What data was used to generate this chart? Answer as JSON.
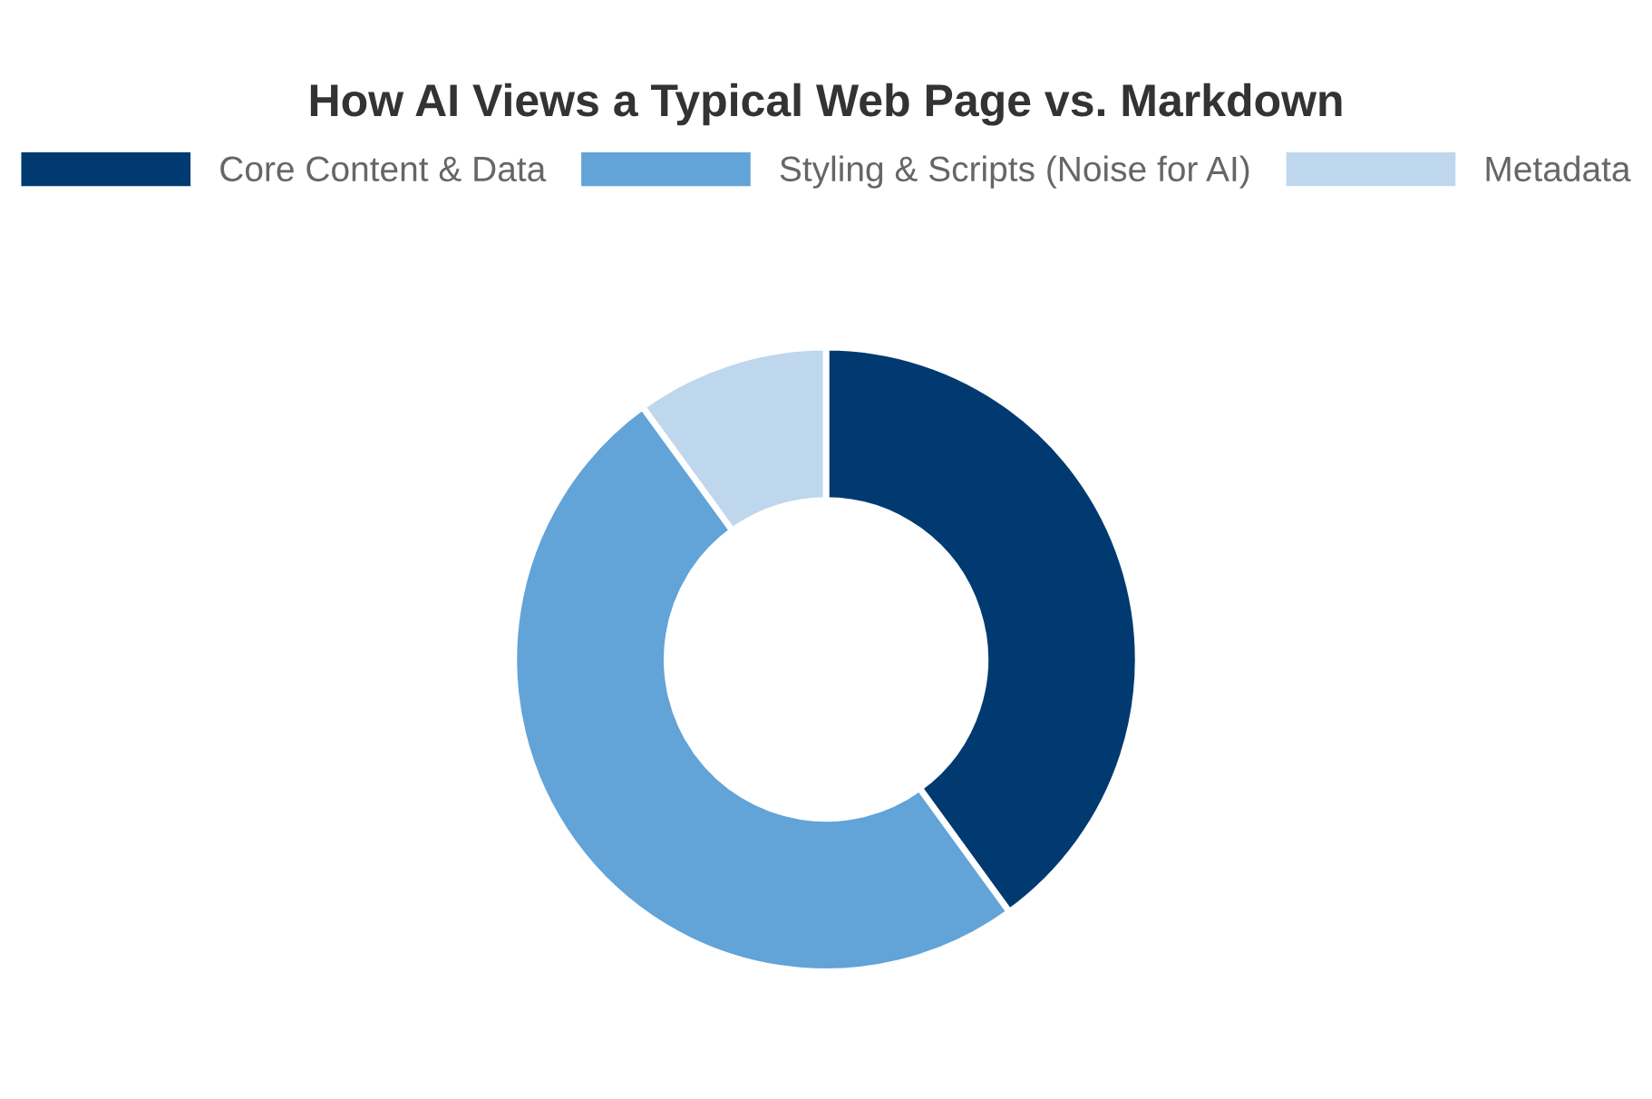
{
  "chart_data": {
    "type": "donut",
    "title": "How AI Views a Typical Web Page vs. Markdown",
    "categories": [
      "Core Content & Data",
      "Styling & Scripts (Noise for AI)",
      "Metadata"
    ],
    "values": [
      40,
      50,
      10
    ],
    "colors": [
      "#003a70",
      "#62a3d8",
      "#bed7ed"
    ],
    "legend": "top"
  }
}
